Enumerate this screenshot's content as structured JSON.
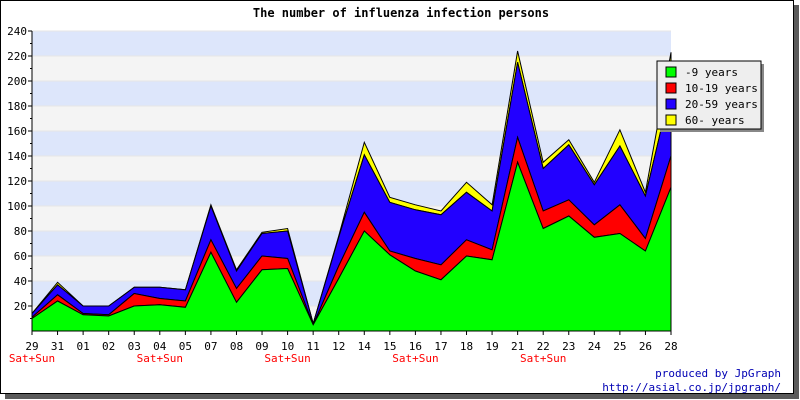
{
  "chart_data": {
    "type": "area",
    "stacked": true,
    "title": "The number of influenza infection persons",
    "x": [
      "29",
      "31",
      "01",
      "02",
      "03",
      "04",
      "05",
      "07",
      "08",
      "09",
      "10",
      "11",
      "12",
      "14",
      "15",
      "16",
      "17",
      "18",
      "19",
      "21",
      "22",
      "23",
      "24",
      "25",
      "26",
      "28"
    ],
    "weekend_labels": [
      "Sat+Sun",
      "",
      "",
      "",
      "",
      "Sat+Sun",
      "",
      "",
      "",
      "",
      "Sat+Sun",
      "",
      "",
      "",
      "",
      "Sat+Sun",
      "",
      "",
      "",
      "",
      "Sat+Sun",
      "",
      "",
      "",
      "",
      ""
    ],
    "ylim": [
      0,
      240
    ],
    "yticks": [
      20,
      40,
      60,
      80,
      100,
      120,
      140,
      160,
      180,
      200,
      220,
      240
    ],
    "grid": true,
    "legend_position": "top-right",
    "series": [
      {
        "name": "-9 years",
        "color": "#00ff00",
        "values": [
          10,
          24,
          13,
          12,
          20,
          21,
          19,
          63,
          23,
          49,
          50,
          5,
          42,
          80,
          61,
          48,
          41,
          60,
          57,
          135,
          82,
          92,
          75,
          78,
          64,
          115
        ]
      },
      {
        "name": "10-19 years",
        "color": "#ff0000",
        "values": [
          1,
          5,
          1,
          1,
          10,
          5,
          5,
          10,
          11,
          11,
          8,
          0,
          10,
          15,
          3,
          10,
          12,
          13,
          8,
          20,
          14,
          13,
          10,
          23,
          10,
          25
        ]
      },
      {
        "name": "20-59 years",
        "color": "#2200ff",
        "values": [
          3,
          8,
          6,
          7,
          5,
          9,
          9,
          27,
          14,
          18,
          22,
          1,
          23,
          46,
          39,
          39,
          40,
          38,
          31,
          60,
          34,
          44,
          32,
          47,
          34,
          55
        ]
      },
      {
        "name": "60- years",
        "color": "#ffff00",
        "values": [
          0,
          2,
          0,
          0,
          0,
          0,
          0,
          1,
          1,
          1,
          2,
          0,
          1,
          10,
          4,
          4,
          3,
          8,
          5,
          9,
          5,
          4,
          2,
          13,
          3,
          28
        ]
      }
    ]
  },
  "credits": {
    "line1": "produced by JpGraph",
    "line2": "http://asial.co.jp/jpgraph/"
  }
}
